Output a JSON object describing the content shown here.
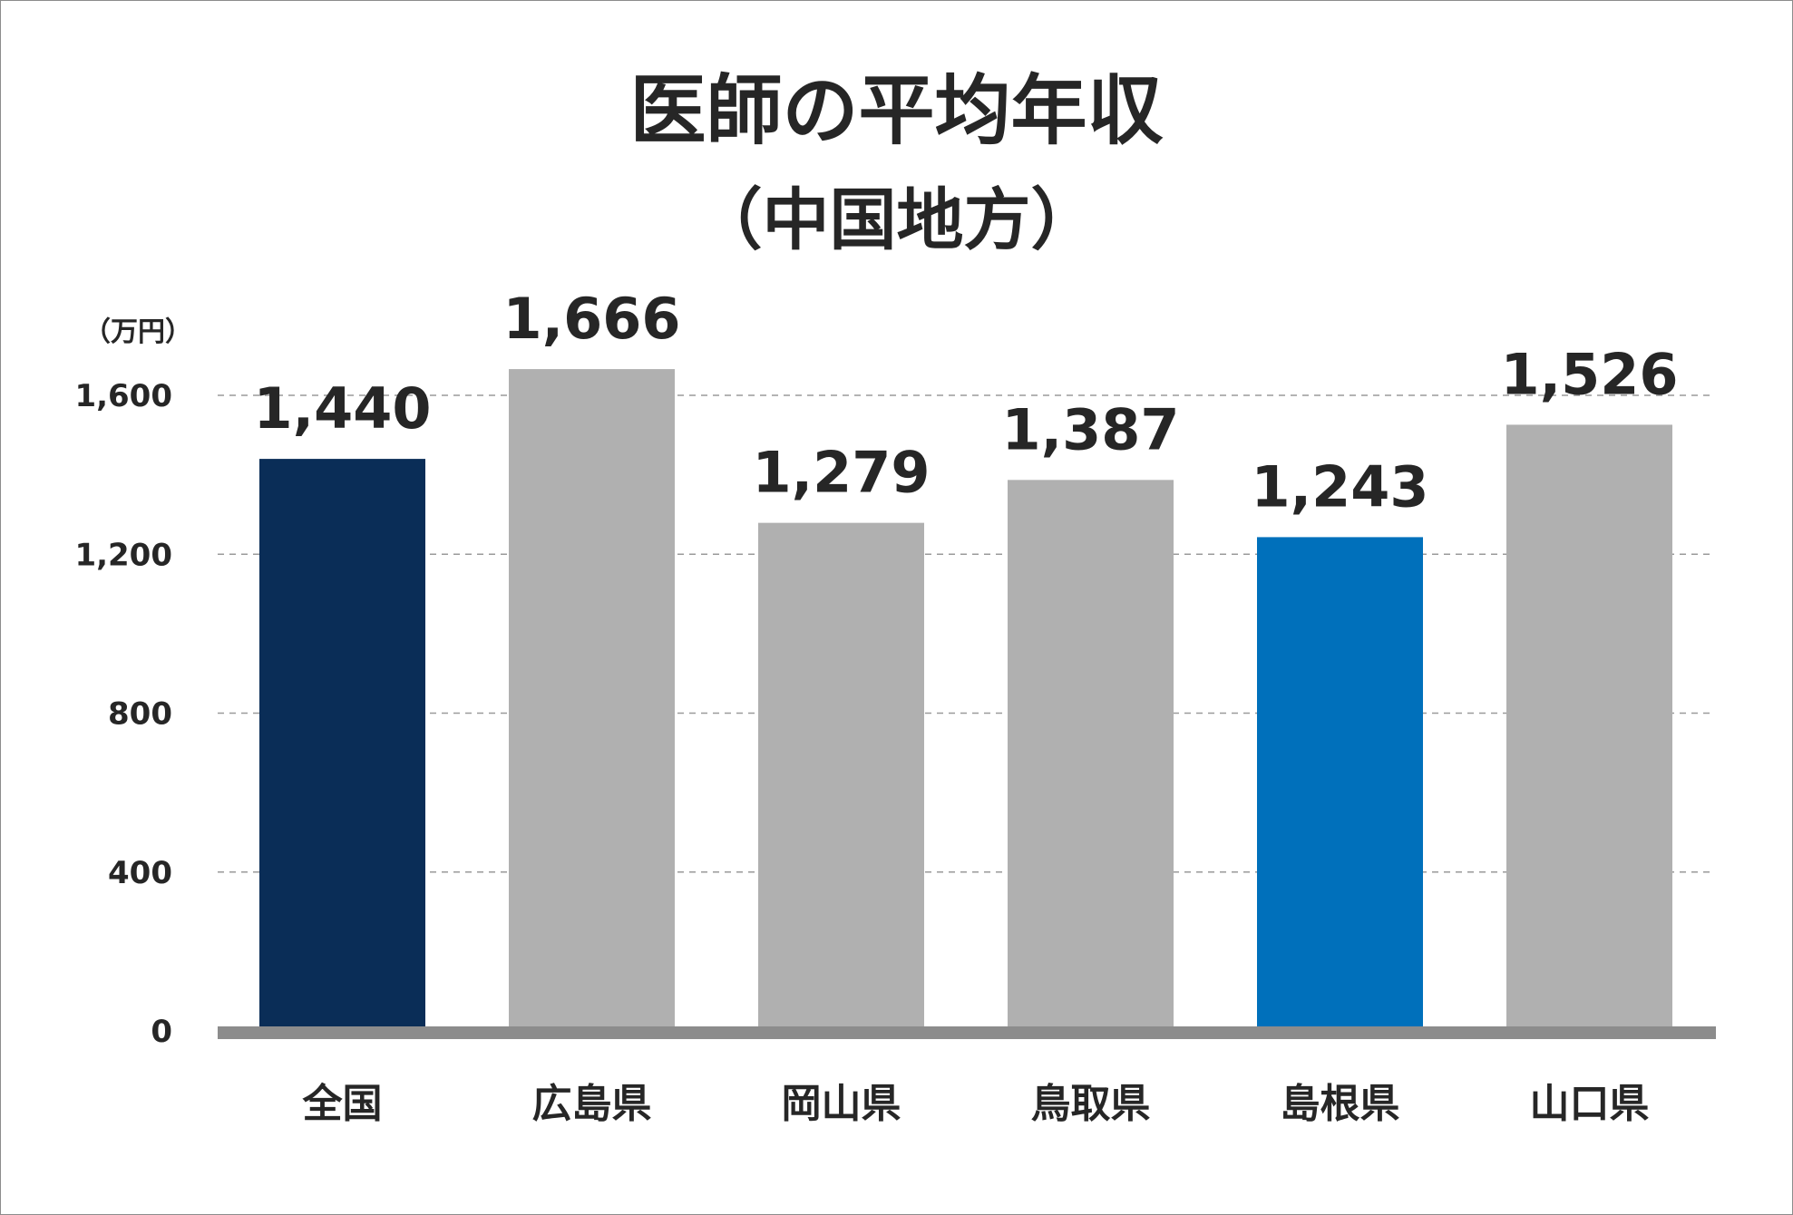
{
  "chart_data": {
    "type": "bar",
    "title": "医師の平均年収",
    "subtitle": "（中国地方）",
    "ylabel": "（万円）",
    "xlabel": "",
    "categories": [
      "全国",
      "広島県",
      "岡山県",
      "鳥取県",
      "島根県",
      "山口県"
    ],
    "values": [
      1440,
      1666,
      1279,
      1387,
      1243,
      1526
    ],
    "value_labels": [
      "1,440",
      "1,666",
      "1,279",
      "1,387",
      "1,243",
      "1,526"
    ],
    "bar_colors": [
      "#0a2d57",
      "#b0b0b0",
      "#b0b0b0",
      "#b0b0b0",
      "#0070bb",
      "#b0b0b0"
    ],
    "ylim": [
      0,
      1800
    ],
    "yticks": [
      0,
      400,
      800,
      1200,
      1600
    ],
    "ytick_labels": [
      "0",
      "400",
      "800",
      "1,200",
      "1,600"
    ],
    "grid": true,
    "legend": "none"
  }
}
